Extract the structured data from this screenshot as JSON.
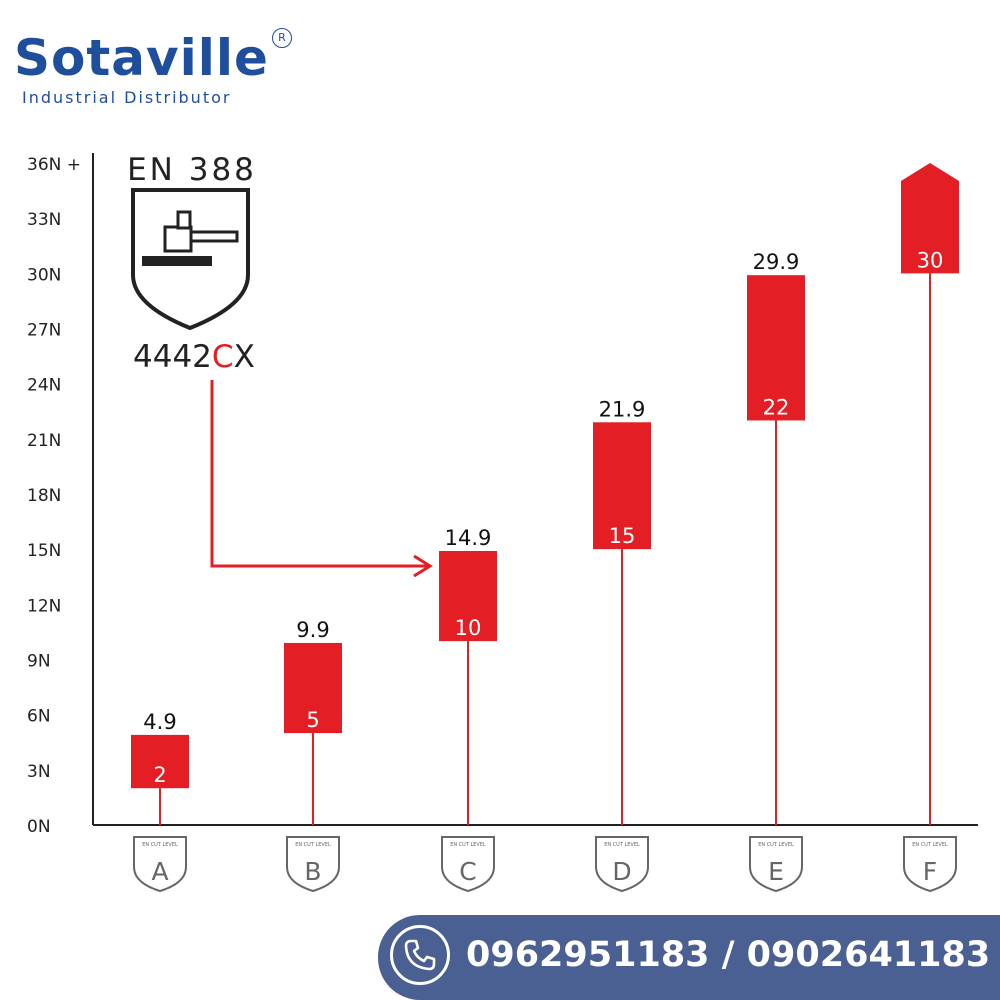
{
  "brand": {
    "name": "Sotaville",
    "registered": "R",
    "tagline": "Industrial Distributor"
  },
  "standard": {
    "title": "EN 388",
    "code_prefix": "4442",
    "code_highlight": "C",
    "code_suffix": "X"
  },
  "contact": {
    "phones": "0962951183 / 0902641183"
  },
  "colors": {
    "bar": "#e31e24",
    "axis": "#222222",
    "brand": "#1f4e9c",
    "banner": "#4a5f92"
  },
  "chart_data": {
    "type": "bar",
    "title": "",
    "xlabel": "",
    "ylabel": "",
    "ylim": [
      0,
      36
    ],
    "y_ticks": [
      "0N",
      "3N",
      "6N",
      "9N",
      "12N",
      "15N",
      "18N",
      "21N",
      "24N",
      "27N",
      "30N",
      "33N",
      "36N +"
    ],
    "badge_caption": "EN CUT LEVEL",
    "categories": [
      "A",
      "B",
      "C",
      "D",
      "E",
      "F"
    ],
    "ranges": [
      {
        "level": "A",
        "low": 2,
        "high": 4.9,
        "low_label": "2",
        "high_label": "4.9"
      },
      {
        "level": "B",
        "low": 5,
        "high": 9.9,
        "low_label": "5",
        "high_label": "9.9"
      },
      {
        "level": "C",
        "low": 10,
        "high": 14.9,
        "low_label": "10",
        "high_label": "14.9"
      },
      {
        "level": "D",
        "low": 15,
        "high": 21.9,
        "low_label": "15",
        "high_label": "21.9"
      },
      {
        "level": "E",
        "low": 22,
        "high": 29.9,
        "low_label": "22",
        "high_label": "29.9"
      },
      {
        "level": "F",
        "low": 30,
        "high": 36,
        "low_label": "30",
        "high_label": "",
        "open_ended": true
      }
    ],
    "annotation_arrow": {
      "from": "code_highlight",
      "to_level": "C"
    }
  }
}
